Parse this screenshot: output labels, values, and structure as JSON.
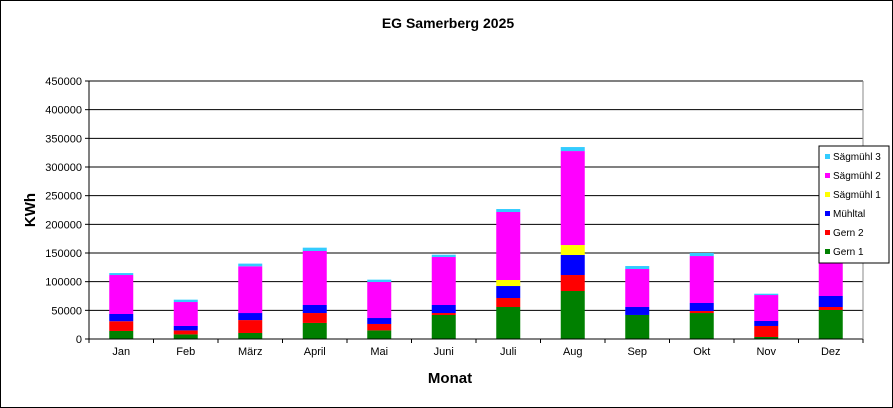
{
  "chart_data": {
    "type": "bar",
    "stacked": true,
    "title": "EG Samerberg 2025",
    "xlabel": "Monat",
    "ylabel": "KWh",
    "ylim": [
      0,
      450000
    ],
    "yticks": [
      0,
      50000,
      100000,
      150000,
      200000,
      250000,
      300000,
      350000,
      400000,
      450000
    ],
    "grid": true,
    "legend_position": "right",
    "categories": [
      "Jan",
      "Feb",
      "März",
      "April",
      "Mai",
      "Juni",
      "Juli",
      "Aug",
      "Sep",
      "Okt",
      "Nov",
      "Dez"
    ],
    "series": [
      {
        "name": "Gern 1",
        "color": "#008000",
        "values": [
          14000,
          8000,
          10500,
          28000,
          15000,
          41900,
          55800,
          83700,
          41900,
          45300,
          3500,
          50600
        ]
      },
      {
        "name": "Gern 2",
        "color": "#ff0000",
        "values": [
          17000,
          7000,
          22500,
          17300,
          11200,
          3400,
          15700,
          27900,
          0,
          3500,
          19200,
          5200
        ]
      },
      {
        "name": "Mühltal",
        "color": "#0000ff",
        "values": [
          12600,
          7700,
          12300,
          14000,
          10400,
          14000,
          20900,
          34900,
          13900,
          14000,
          8700,
          19200
        ]
      },
      {
        "name": "Sägmühl 1",
        "color": "#ffff00",
        "values": [
          0,
          0,
          0,
          0,
          0,
          0,
          10500,
          17400,
          0,
          0,
          0,
          0
        ]
      },
      {
        "name": "Sägmühl 2",
        "color": "#ff00ff",
        "values": [
          68000,
          41800,
          81500,
          94200,
          62800,
          83700,
          118600,
          163900,
          66300,
          81900,
          45300,
          102800
        ]
      },
      {
        "name": "Sägmühl 3",
        "color": "#33ccff",
        "values": [
          3400,
          4100,
          4700,
          5800,
          4100,
          4000,
          5200,
          7000,
          5200,
          5300,
          2300,
          5800
        ]
      }
    ]
  }
}
